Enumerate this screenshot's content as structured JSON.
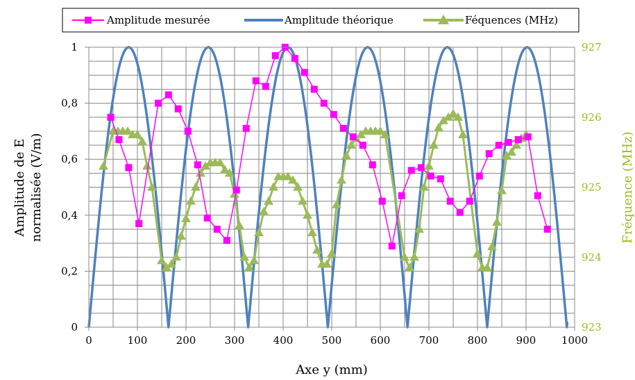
{
  "chart_data": {
    "type": "line",
    "x_axis": {
      "label": "Axe y (mm)",
      "range": [
        0,
        1000
      ],
      "ticks": [
        0,
        100,
        200,
        300,
        400,
        500,
        600,
        700,
        800,
        900,
        1000
      ]
    },
    "y_axis_left": {
      "label_lines": [
        "Amplitude de E",
        "normalisée (V/m)"
      ],
      "range": [
        0,
        1
      ],
      "ticks": [
        "0",
        "0,2",
        "0,4",
        "0,6",
        "0,8",
        "1"
      ]
    },
    "y_axis_right": {
      "label": "Fréquence (MHz)",
      "range": [
        923,
        927
      ],
      "ticks": [
        "923",
        "924",
        "925",
        "926",
        "927"
      ]
    },
    "grid": true,
    "legend_position": "top",
    "series": [
      {
        "name": "Amplitude mesurée",
        "axis": "left",
        "color": "#FF00FF",
        "marker": "square",
        "points": [
          [
            45,
            0.75
          ],
          [
            62,
            0.67
          ],
          [
            82,
            0.57
          ],
          [
            103,
            0.37
          ],
          [
            143,
            0.8
          ],
          [
            164,
            0.83
          ],
          [
            184,
            0.78
          ],
          [
            204,
            0.7
          ],
          [
            224,
            0.58
          ],
          [
            244,
            0.39
          ],
          [
            264,
            0.35
          ],
          [
            284,
            0.31
          ],
          [
            304,
            0.49
          ],
          [
            324,
            0.71
          ],
          [
            344,
            0.88
          ],
          [
            364,
            0.86
          ],
          [
            384,
            0.97
          ],
          [
            404,
            1.0
          ],
          [
            424,
            0.96
          ],
          [
            444,
            0.91
          ],
          [
            464,
            0.85
          ],
          [
            484,
            0.8
          ],
          [
            504,
            0.76
          ],
          [
            524,
            0.71
          ],
          [
            544,
            0.68
          ],
          [
            564,
            0.65
          ],
          [
            584,
            0.58
          ],
          [
            604,
            0.45
          ],
          [
            624,
            0.29
          ],
          [
            644,
            0.47
          ],
          [
            664,
            0.56
          ],
          [
            684,
            0.57
          ],
          [
            704,
            0.54
          ],
          [
            724,
            0.53
          ],
          [
            744,
            0.45
          ],
          [
            764,
            0.41
          ],
          [
            784,
            0.45
          ],
          [
            804,
            0.54
          ],
          [
            824,
            0.62
          ],
          [
            844,
            0.65
          ],
          [
            864,
            0.66
          ],
          [
            884,
            0.67
          ],
          [
            904,
            0.68
          ],
          [
            924,
            0.47
          ],
          [
            944,
            0.35
          ]
        ]
      },
      {
        "name": "Amplitude théorique",
        "axis": "left",
        "color": "#4F81BD",
        "marker": "none",
        "formula": "|sin(pi*x/164)|",
        "x_range": [
          0,
          985
        ]
      },
      {
        "name": "Féquences (MHz)",
        "axis": "right",
        "color": "#9BBB59",
        "marker": "triangle",
        "points": [
          [
            30,
            925.3
          ],
          [
            50,
            925.8
          ],
          [
            60,
            925.8
          ],
          [
            70,
            925.8
          ],
          [
            80,
            925.8
          ],
          [
            90,
            925.75
          ],
          [
            100,
            925.75
          ],
          [
            110,
            925.65
          ],
          [
            120,
            925.3
          ],
          [
            130,
            925.0
          ],
          [
            150,
            923.95
          ],
          [
            160,
            923.85
          ],
          [
            170,
            923.9
          ],
          [
            180,
            924.0
          ],
          [
            190,
            924.3
          ],
          [
            200,
            924.55
          ],
          [
            210,
            924.8
          ],
          [
            220,
            925.0
          ],
          [
            230,
            925.2
          ],
          [
            240,
            925.3
          ],
          [
            250,
            925.35
          ],
          [
            260,
            925.35
          ],
          [
            270,
            925.35
          ],
          [
            280,
            925.25
          ],
          [
            290,
            925.2
          ],
          [
            300,
            924.9
          ],
          [
            310,
            924.45
          ],
          [
            320,
            924.0
          ],
          [
            330,
            923.85
          ],
          [
            340,
            923.95
          ],
          [
            350,
            924.35
          ],
          [
            360,
            924.65
          ],
          [
            370,
            924.8
          ],
          [
            380,
            925.0
          ],
          [
            390,
            925.15
          ],
          [
            400,
            925.15
          ],
          [
            410,
            925.15
          ],
          [
            420,
            925.1
          ],
          [
            430,
            925.0
          ],
          [
            440,
            924.8
          ],
          [
            450,
            924.6
          ],
          [
            460,
            924.35
          ],
          [
            470,
            924.1
          ],
          [
            480,
            923.9
          ],
          [
            490,
            923.9
          ],
          [
            500,
            924.05
          ],
          [
            510,
            924.75
          ],
          [
            520,
            925.1
          ],
          [
            530,
            925.45
          ],
          [
            540,
            925.6
          ],
          [
            550,
            925.7
          ],
          [
            560,
            925.75
          ],
          [
            570,
            925.8
          ],
          [
            580,
            925.8
          ],
          [
            590,
            925.8
          ],
          [
            600,
            925.8
          ],
          [
            610,
            925.75
          ],
          [
            650,
            924.0
          ],
          [
            660,
            923.85
          ],
          [
            670,
            924.0
          ],
          [
            680,
            924.4
          ],
          [
            690,
            925.0
          ],
          [
            700,
            925.3
          ],
          [
            710,
            925.6
          ],
          [
            720,
            925.85
          ],
          [
            730,
            925.95
          ],
          [
            740,
            926.0
          ],
          [
            750,
            926.05
          ],
          [
            760,
            926.0
          ],
          [
            770,
            925.75
          ],
          [
            800,
            924.05
          ],
          [
            810,
            923.85
          ],
          [
            820,
            923.85
          ],
          [
            830,
            924.15
          ],
          [
            840,
            924.5
          ],
          [
            850,
            924.95
          ],
          [
            860,
            925.45
          ],
          [
            870,
            925.5
          ],
          [
            880,
            925.6
          ],
          [
            890,
            925.7
          ],
          [
            900,
            925.75
          ]
        ]
      }
    ]
  }
}
